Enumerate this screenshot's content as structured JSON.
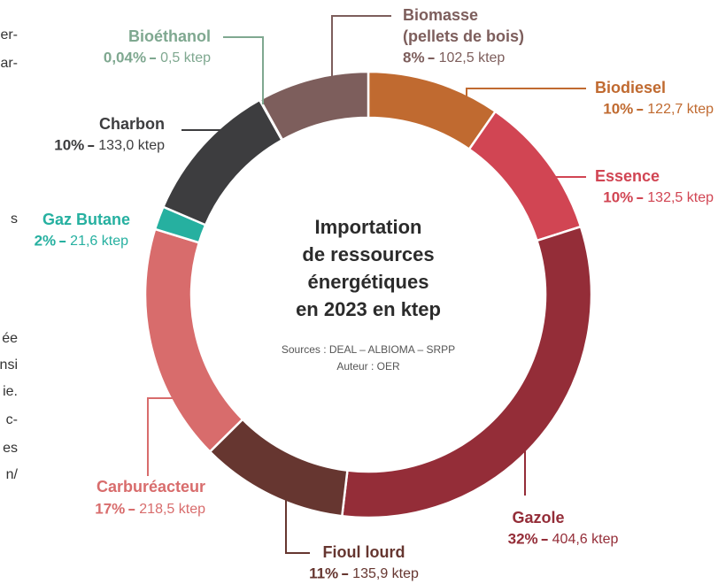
{
  "chart_data": {
    "type": "pie",
    "donut": true,
    "title_lines": [
      "Importation",
      "de ressources",
      "énergétiques",
      "en 2023 en ktep"
    ],
    "sources": "Sources : DEAL – ALBIOMA – SRPP",
    "author": "Auteur : OER",
    "categories": [
      "Biodiesel",
      "Essence",
      "Gazole",
      "Fioul lourd",
      "Carburéacteur",
      "Gaz Butane",
      "Charbon",
      "Bioéthanol",
      "Biomasse"
    ],
    "biomass_detail": "(pellets de bois)",
    "values": [
      122.7,
      132.5,
      404.6,
      135.9,
      218.5,
      21.6,
      133.0,
      0.5,
      102.5
    ],
    "value_labels": [
      "122,7 ktep",
      "132,5 ktep",
      "404,6 ktep",
      "135,9 ktep",
      "218,5 ktep",
      "21,6 ktep",
      "133,0 ktep",
      "0,5 ktep",
      "102,5 ktep"
    ],
    "share_labels": [
      "10%",
      "10%",
      "32%",
      "11%",
      "17%",
      "2%",
      "10%",
      "0,04%",
      "8%"
    ],
    "colors": [
      "#c06a30",
      "#d14553",
      "#942d38",
      "#663630",
      "#d86c6c",
      "#26b0a0",
      "#3d3d3f",
      "#7fa890",
      "#7d5e5c"
    ],
    "left_column_fragments": [
      "er-",
      "ar-",
      "s",
      "ée",
      "nsi",
      "ie.",
      "c-",
      "es",
      "n/"
    ]
  }
}
